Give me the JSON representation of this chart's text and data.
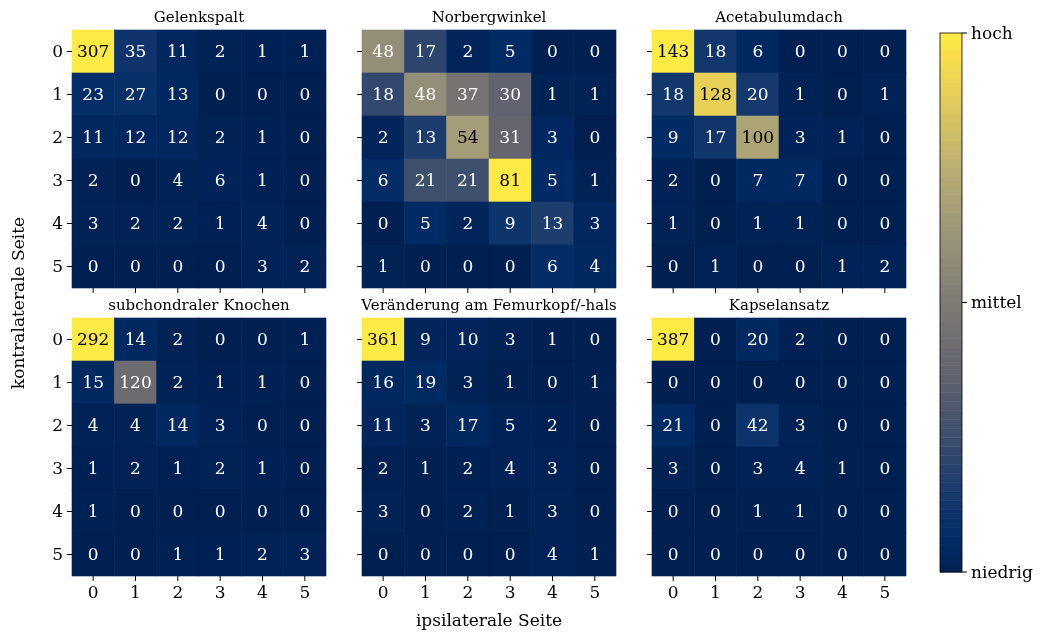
{
  "chart_data": [
    {
      "type": "heatmap",
      "title": "Gelenkspalt",
      "data_labels": true,
      "ylabel": "kontralaterale Seite",
      "tick_labels": "y",
      "categories": [
        "0",
        "1",
        "2",
        "3",
        "4",
        "5"
      ],
      "y_categories": [
        "0",
        "1",
        "2",
        "3",
        "4",
        "5"
      ],
      "clim": [
        0,
        307
      ],
      "cticks": [
        {
          "value": 0,
          "label": "niedrig"
        },
        {
          "value": 153.5,
          "label": "mittel"
        },
        {
          "value": 307,
          "label": "hoch"
        }
      ],
      "cells": [
        [
          307,
          35,
          11,
          2,
          1,
          1
        ],
        [
          23,
          27,
          13,
          0,
          0,
          0
        ],
        [
          11,
          12,
          12,
          2,
          1,
          0
        ],
        [
          2,
          0,
          4,
          6,
          1,
          0
        ],
        [
          3,
          2,
          2,
          1,
          4,
          0
        ],
        [
          0,
          0,
          0,
          0,
          3,
          2
        ]
      ]
    },
    {
      "type": "heatmap",
      "title": "Norbergwinkel",
      "data_labels": true,
      "tick_labels": false,
      "categories": [
        "0",
        "1",
        "2",
        "3",
        "4",
        "5"
      ],
      "y_categories": [
        "0",
        "1",
        "2",
        "3",
        "4",
        "5"
      ],
      "cells": [
        [
          48,
          17,
          2,
          5,
          0,
          0
        ],
        [
          18,
          48,
          37,
          30,
          1,
          1
        ],
        [
          2,
          13,
          54,
          31,
          3,
          0
        ],
        [
          6,
          21,
          21,
          81,
          5,
          1
        ],
        [
          0,
          5,
          2,
          9,
          13,
          3
        ],
        [
          1,
          0,
          0,
          0,
          6,
          4
        ]
      ]
    },
    {
      "type": "heatmap",
      "title": "Acetabulumdach",
      "data_labels": true,
      "tick_labels": false,
      "categories": [
        "0",
        "1",
        "2",
        "3",
        "4",
        "5"
      ],
      "y_categories": [
        "0",
        "1",
        "2",
        "3",
        "4",
        "5"
      ],
      "cells": [
        [
          143,
          18,
          6,
          0,
          0,
          0
        ],
        [
          18,
          128,
          20,
          1,
          0,
          1
        ],
        [
          9,
          17,
          100,
          3,
          1,
          0
        ],
        [
          2,
          0,
          7,
          7,
          0,
          0
        ],
        [
          1,
          0,
          1,
          1,
          0,
          0
        ],
        [
          0,
          1,
          0,
          0,
          1,
          2
        ]
      ]
    },
    {
      "type": "heatmap",
      "title": "subchondraler Knochen",
      "data_labels": true,
      "categories": [
        "0",
        "1",
        "2",
        "3",
        "4",
        "5"
      ],
      "y_categories": [
        "0",
        "1",
        "2",
        "3",
        "4",
        "5"
      ],
      "cells": [
        [
          292,
          14,
          2,
          0,
          0,
          1
        ],
        [
          15,
          120,
          2,
          1,
          1,
          0
        ],
        [
          4,
          4,
          14,
          3,
          0,
          0
        ],
        [
          1,
          2,
          1,
          2,
          1,
          0
        ],
        [
          1,
          0,
          0,
          0,
          0,
          0
        ],
        [
          0,
          0,
          1,
          1,
          2,
          3
        ]
      ]
    },
    {
      "type": "heatmap",
      "title": "Veränderung am Femurkopf/-hals",
      "data_labels": true,
      "xlabel": "ipsilaterale Seite",
      "tick_labels": "x",
      "categories": [
        "0",
        "1",
        "2",
        "3",
        "4",
        "5"
      ],
      "y_categories": [
        "0",
        "1",
        "2",
        "3",
        "4",
        "5"
      ],
      "cells": [
        [
          361,
          9,
          10,
          3,
          1,
          0
        ],
        [
          16,
          19,
          3,
          1,
          0,
          1
        ],
        [
          11,
          3,
          17,
          5,
          2,
          0
        ],
        [
          2,
          1,
          2,
          4,
          3,
          0
        ],
        [
          3,
          0,
          2,
          1,
          3,
          0
        ],
        [
          0,
          0,
          0,
          0,
          4,
          1
        ]
      ]
    },
    {
      "type": "heatmap",
      "title": "Kapselansatz",
      "data_labels": true,
      "tick_labels": "x",
      "categories": [
        "0",
        "1",
        "2",
        "3",
        "4",
        "5"
      ],
      "y_categories": [
        "0",
        "1",
        "2",
        "3",
        "4",
        "5"
      ],
      "cells": [
        [
          387,
          0,
          20,
          2,
          0,
          0
        ],
        [
          0,
          0,
          0,
          0,
          0,
          0
        ],
        [
          21,
          0,
          42,
          3,
          0,
          0
        ],
        [
          3,
          0,
          3,
          4,
          1,
          0
        ],
        [
          0,
          0,
          1,
          1,
          0,
          0
        ],
        [
          0,
          0,
          0,
          0,
          0,
          0
        ]
      ]
    }
  ]
}
